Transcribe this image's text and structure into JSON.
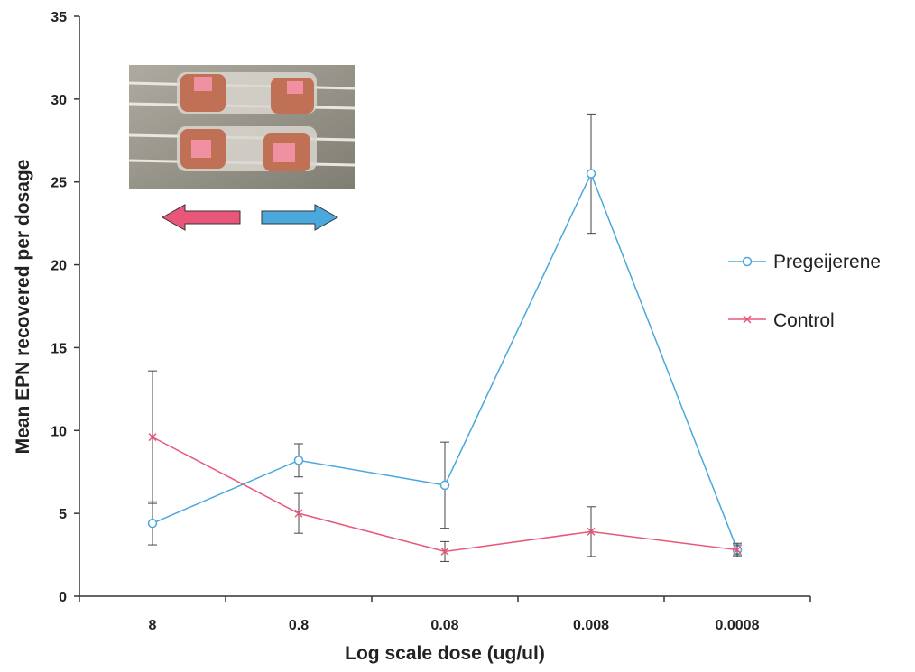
{
  "chart_data": {
    "type": "line",
    "title": "",
    "xlabel": "Log scale dose (ug/ul)",
    "ylabel": "Mean EPN recovered per dosage",
    "categories": [
      "8",
      "0.8",
      "0.08",
      "0.008",
      "0.0008"
    ],
    "ylim": [
      0,
      35
    ],
    "yticks": [
      0,
      5,
      10,
      15,
      20,
      25,
      30,
      35
    ],
    "grid": false,
    "legend_position": "right",
    "series": [
      {
        "name": "Pregeijerene",
        "color": "#4aa8dc",
        "marker": "circle",
        "values": [
          4.4,
          8.2,
          6.7,
          25.5,
          2.8
        ],
        "error": [
          1.3,
          1.0,
          2.6,
          3.6,
          0.3
        ]
      },
      {
        "name": "Control",
        "color": "#e8577a",
        "marker": "x",
        "values": [
          9.6,
          5.0,
          2.7,
          3.9,
          2.8
        ],
        "error": [
          4.0,
          1.2,
          0.6,
          1.5,
          0.4
        ]
      }
    ],
    "inset": {
      "description": "photo",
      "arrow_left_color": "#e8577a",
      "arrow_right_color": "#4aa8dc"
    }
  }
}
